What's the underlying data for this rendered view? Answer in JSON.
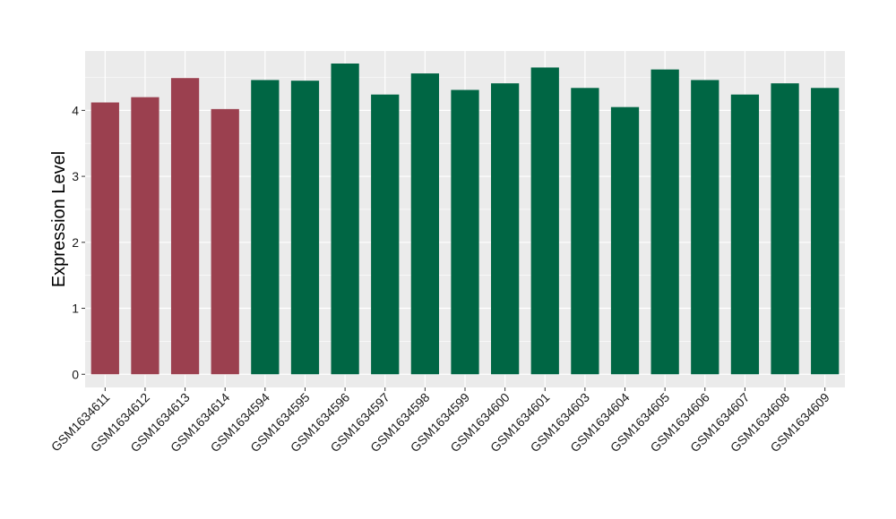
{
  "chart_data": {
    "type": "bar",
    "title": "",
    "xlabel": "",
    "ylabel": "Expression Level",
    "ylim": [
      -0.2,
      4.9
    ],
    "yticks": [
      0,
      1,
      2,
      3,
      4
    ],
    "grid": true,
    "legend": "none",
    "categories": [
      "GSM1634611",
      "GSM1634612",
      "GSM1634613",
      "GSM1634614",
      "GSM1634594",
      "GSM1634595",
      "GSM1634596",
      "GSM1634597",
      "GSM1634598",
      "GSM1634599",
      "GSM1634600",
      "GSM1634601",
      "GSM1634603",
      "GSM1634604",
      "GSM1634605",
      "GSM1634606",
      "GSM1634607",
      "GSM1634608",
      "GSM1634609"
    ],
    "values": [
      4.12,
      4.2,
      4.49,
      4.02,
      4.46,
      4.45,
      4.71,
      4.24,
      4.56,
      4.31,
      4.41,
      4.65,
      4.34,
      4.05,
      4.62,
      4.46,
      4.24,
      4.41,
      4.34
    ],
    "groups": [
      "red",
      "red",
      "red",
      "red",
      "green",
      "green",
      "green",
      "green",
      "green",
      "green",
      "green",
      "green",
      "green",
      "green",
      "green",
      "green",
      "green",
      "green",
      "green"
    ],
    "colors": {
      "red": "#9b404f",
      "green": "#006644",
      "panel": "#ebebeb",
      "grid": "#ffffff"
    }
  }
}
